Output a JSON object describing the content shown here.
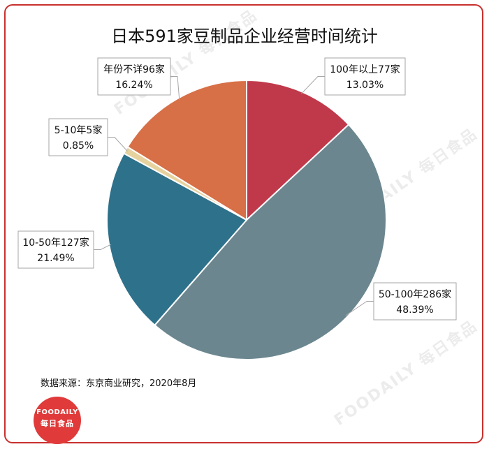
{
  "chart_data": {
    "type": "pie",
    "title": "日本591家豆制品企业经营时间统计",
    "slices": [
      {
        "category": "100年以上",
        "count_text": "77家",
        "count": 77,
        "percent": 13.03,
        "percent_text": "13.03%",
        "color": "#c0394b"
      },
      {
        "category": "50-100年",
        "count_text": "286家",
        "count": 286,
        "percent": 48.39,
        "percent_text": "48.39%",
        "color": "#6b868f"
      },
      {
        "category": "10-50年",
        "count_text": "127家",
        "count": 127,
        "percent": 21.49,
        "percent_text": "21.49%",
        "color": "#2e718b"
      },
      {
        "category": "5-10年",
        "count_text": "5家",
        "count": 5,
        "percent": 0.85,
        "percent_text": "0.85%",
        "color": "#e6d29f"
      },
      {
        "category": "年份不详",
        "count_text": "96家",
        "count": 96,
        "percent": 16.24,
        "percent_text": "16.24%",
        "color": "#d76f47"
      }
    ],
    "legend": "none",
    "data_labels": "callouts"
  },
  "source": "数据来源：东京商业研究，2020年8月",
  "watermark": {
    "latin": "FOODAILY",
    "chinese": "每日食品"
  },
  "logo": {
    "latin": "FOODAILY",
    "chinese": "每日食品"
  },
  "colors": {
    "frame": "#c8302d",
    "logo": "#e03a3a"
  }
}
